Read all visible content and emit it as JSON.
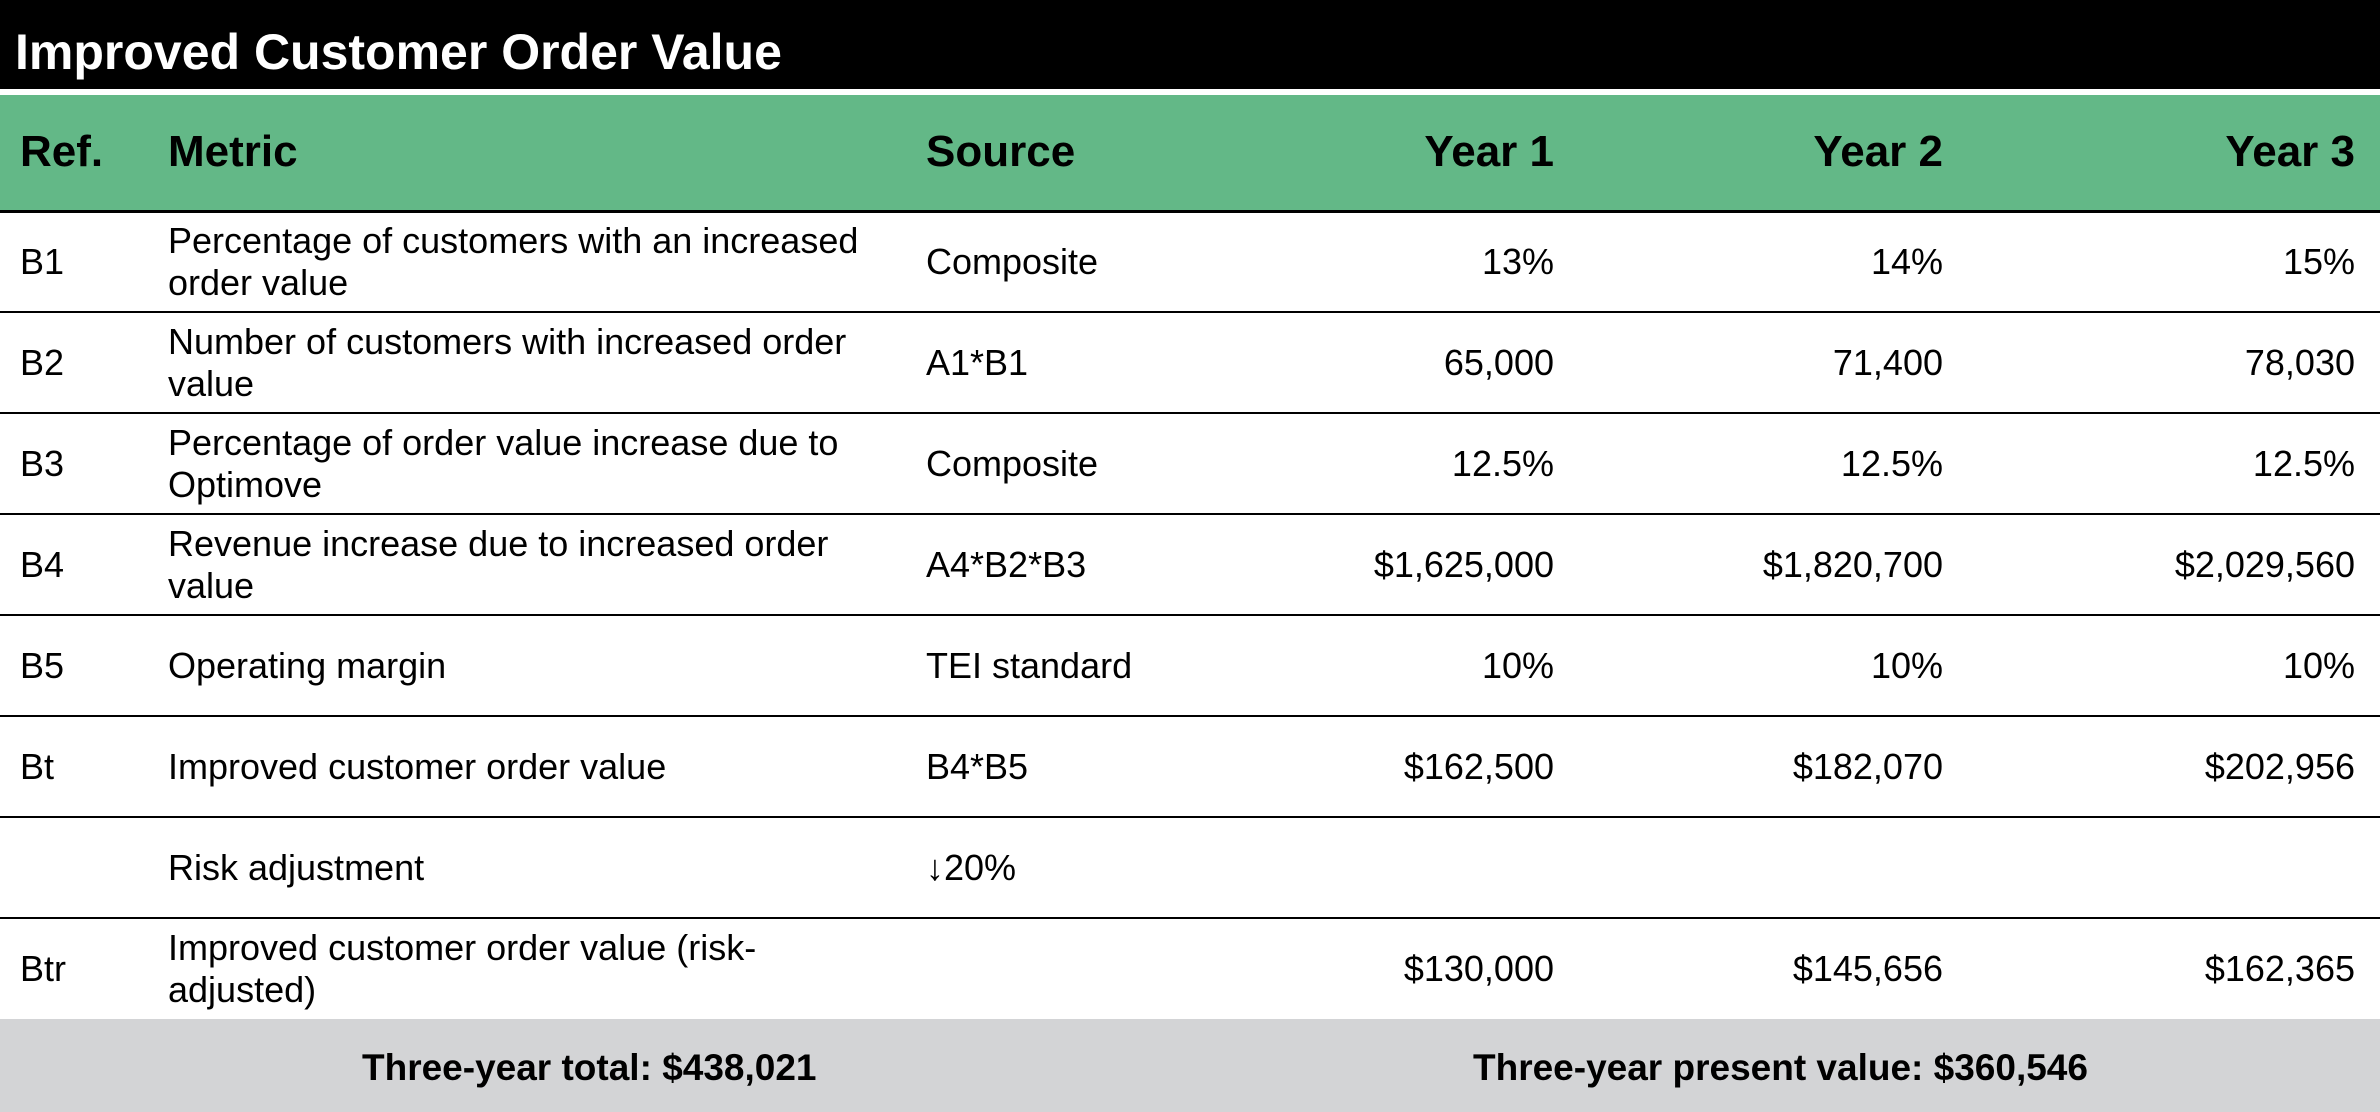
{
  "title": "Improved Customer Order Value",
  "colors": {
    "title_bg": "#000000",
    "header_bg": "#63b887",
    "footer_bg": "#d3d4d6"
  },
  "columns": {
    "ref": "Ref.",
    "metric": "Metric",
    "source": "Source",
    "year1": "Year 1",
    "year2": "Year 2",
    "year3": "Year 3"
  },
  "rows": [
    {
      "ref": "B1",
      "metric": "Percentage of customers with an increased order value",
      "source": "Composite",
      "year1": "13%",
      "year2": "14%",
      "year3": "15%"
    },
    {
      "ref": "B2",
      "metric": "Number of customers with increased order value",
      "source": "A1*B1",
      "year1": "65,000",
      "year2": "71,400",
      "year3": "78,030"
    },
    {
      "ref": "B3",
      "metric": "Percentage of order value increase due to Optimove",
      "source": "Composite",
      "year1": "12.5%",
      "year2": "12.5%",
      "year3": "12.5%"
    },
    {
      "ref": "B4",
      "metric": "Revenue increase due to increased order value",
      "source": "A4*B2*B3",
      "year1": "$1,625,000",
      "year2": "$1,820,700",
      "year3": "$2,029,560"
    },
    {
      "ref": "B5",
      "metric": "Operating margin",
      "source": "TEI standard",
      "year1": "10%",
      "year2": "10%",
      "year3": "10%"
    },
    {
      "ref": "Bt",
      "metric": "Improved customer order value",
      "source": "B4*B5",
      "year1": "$162,500",
      "year2": "$182,070",
      "year3": "$202,956"
    },
    {
      "ref": "",
      "metric": "Risk adjustment",
      "source": "↓20%",
      "year1": "",
      "year2": "",
      "year3": ""
    },
    {
      "ref": "Btr",
      "metric": "Improved customer order value (risk-adjusted)",
      "source": "",
      "year1": "$130,000",
      "year2": "$145,656",
      "year3": "$162,365"
    }
  ],
  "footer": {
    "total": "Three-year total: $438,021",
    "present_value": "Three-year present value: $360,546"
  }
}
